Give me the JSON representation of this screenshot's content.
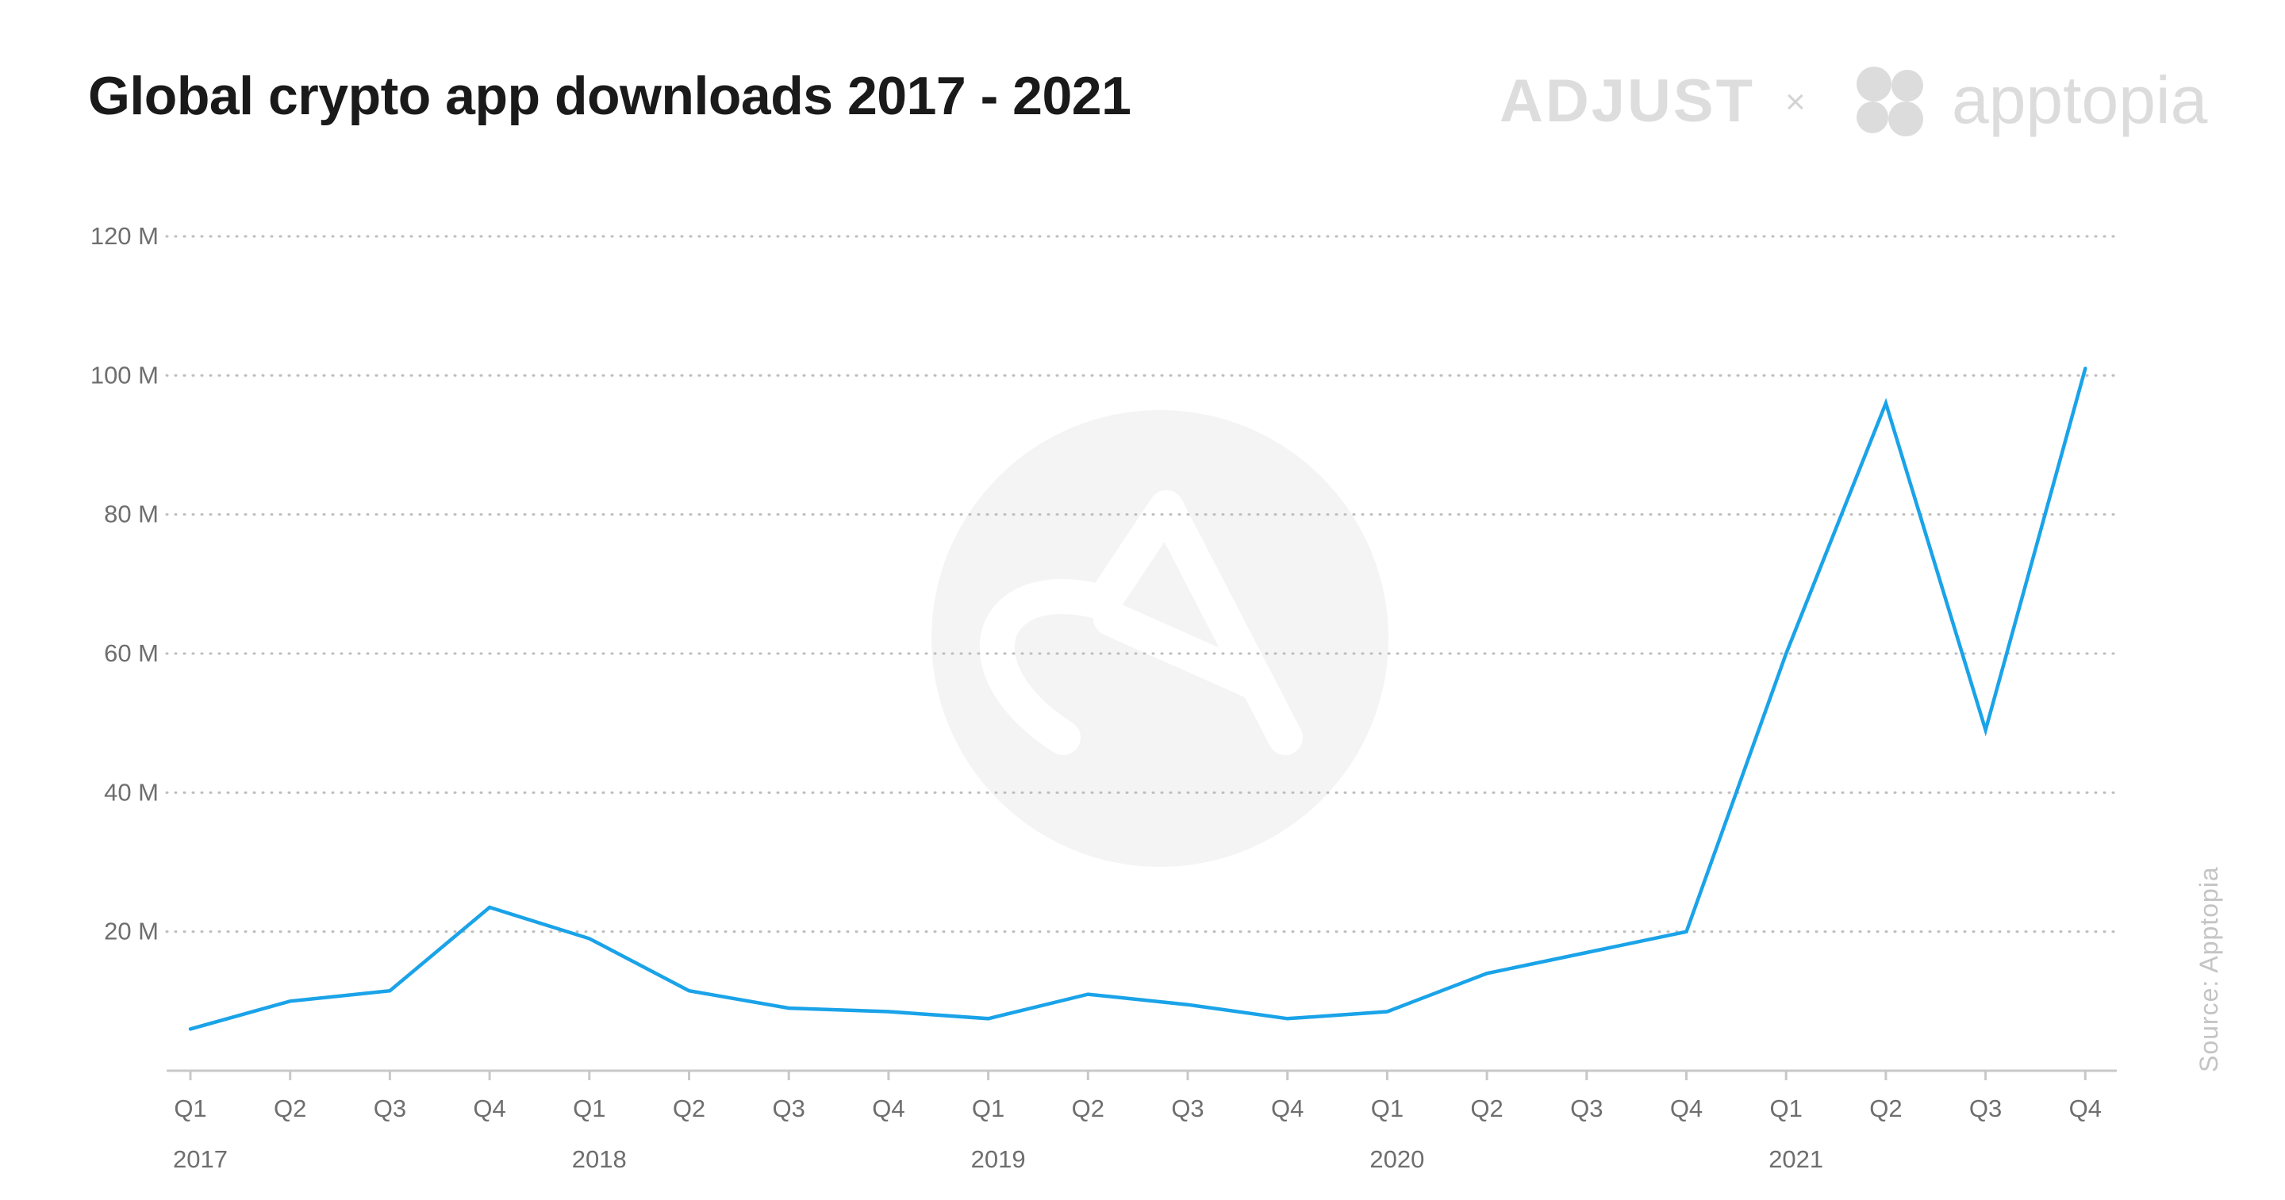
{
  "title": "Global crypto app downloads 2017 - 2021",
  "brand": {
    "adjust": "ADJUST",
    "separator": "×",
    "apptopia": "apptopia"
  },
  "source": "Source:  Apptopia",
  "colors": {
    "line": "#1aa3e8",
    "grid": "#bdbdbd",
    "axis": "#c8c8c8",
    "watermark": "#f4f4f4"
  },
  "chart_data": {
    "type": "line",
    "title": "Global crypto app downloads 2017 - 2021",
    "xlabel": "",
    "ylabel": "",
    "categories": [
      "Q1",
      "Q2",
      "Q3",
      "Q4",
      "Q1",
      "Q2",
      "Q3",
      "Q4",
      "Q1",
      "Q2",
      "Q3",
      "Q4",
      "Q1",
      "Q2",
      "Q3",
      "Q4",
      "Q1",
      "Q2",
      "Q3",
      "Q4"
    ],
    "years": [
      {
        "label": "2017",
        "index": 0
      },
      {
        "label": "2018",
        "index": 4
      },
      {
        "label": "2019",
        "index": 8
      },
      {
        "label": "2020",
        "index": 12
      },
      {
        "label": "2021",
        "index": 16
      }
    ],
    "series": [
      {
        "values": [
          6,
          10,
          11.5,
          23.5,
          19,
          11.5,
          9,
          8.5,
          7.5,
          11,
          9.5,
          7.5,
          8.5,
          14,
          17,
          20,
          60,
          96,
          49,
          101
        ]
      }
    ],
    "yticks": [
      20,
      40,
      60,
      80,
      100,
      120
    ],
    "ytick_labels": [
      "20 M",
      "40 M",
      "60 M",
      "80 M",
      "100 M",
      "120 M"
    ],
    "ylim": [
      0,
      120
    ],
    "grid": true,
    "grid_style": "dotted"
  }
}
